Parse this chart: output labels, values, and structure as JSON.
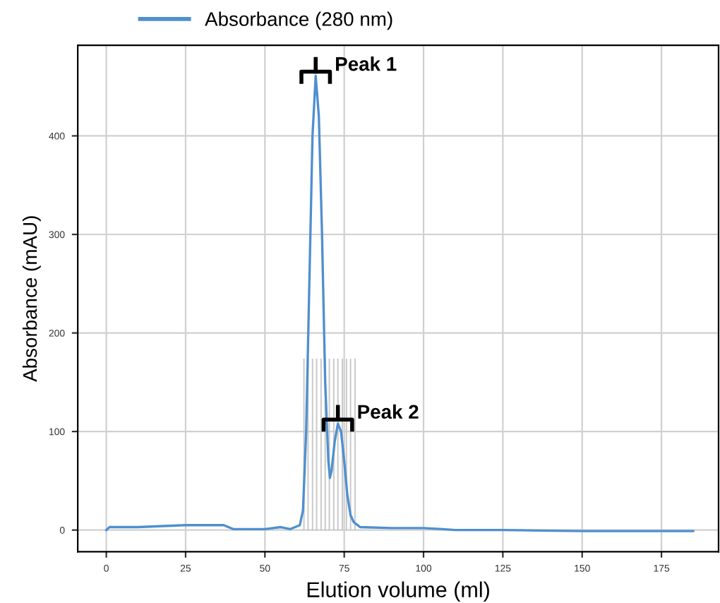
{
  "chart_data": {
    "type": "line",
    "xlabel": "Elution volume (ml)",
    "ylabel": "Absorbance (mAU)",
    "xlim": [
      -9,
      193
    ],
    "ylim": [
      -22,
      492
    ],
    "xticks": [
      0,
      25,
      50,
      75,
      100,
      125,
      150,
      175
    ],
    "yticks": [
      0,
      100,
      200,
      300,
      400
    ],
    "grid": true,
    "legend": "top",
    "line_style": "solid",
    "series": [
      {
        "name": "Absorbance (280 nm)",
        "color": "#4f8fcf",
        "x": [
          0,
          1,
          10,
          25,
          37,
          40,
          50,
          55,
          58,
          61,
          62,
          63,
          64,
          65,
          66,
          67,
          68,
          69,
          70,
          70.5,
          71,
          72,
          73,
          74,
          75,
          76,
          77,
          78,
          80,
          90,
          100,
          106,
          110,
          125,
          150,
          185
        ],
        "values": [
          0,
          3,
          3,
          5,
          5,
          1,
          1,
          3,
          1,
          5,
          20,
          100,
          250,
          400,
          461,
          420,
          300,
          150,
          70,
          53,
          60,
          90,
          108,
          100,
          70,
          35,
          15,
          8,
          3,
          2,
          2,
          1,
          0,
          0,
          -1,
          -1
        ]
      }
    ],
    "ref_lines": [
      {
        "axis": "x",
        "value": 62.3,
        "color": "#c8c8c8"
      },
      {
        "axis": "x",
        "value": 63.6,
        "color": "#c8c8c8"
      },
      {
        "axis": "x",
        "value": 65.0,
        "color": "#c8c8c8"
      },
      {
        "axis": "x",
        "value": 66.3,
        "color": "#c8c8c8"
      },
      {
        "axis": "x",
        "value": 67.7,
        "color": "#c8c8c8"
      },
      {
        "axis": "x",
        "value": 69.0,
        "color": "#c8c8c8"
      },
      {
        "axis": "x",
        "value": 70.3,
        "color": "#c8c8c8"
      },
      {
        "axis": "x",
        "value": 71.7,
        "color": "#c8c8c8"
      },
      {
        "axis": "x",
        "value": 73.0,
        "color": "#c8c8c8"
      },
      {
        "axis": "x",
        "value": 74.4,
        "color": "#c8c8c8"
      },
      {
        "axis": "x",
        "value": 75.7,
        "color": "#c8c8c8"
      },
      {
        "axis": "x",
        "value": 77.0,
        "color": "#c8c8c8"
      },
      {
        "axis": "x",
        "value": 78.4,
        "color": "#c8c8c8"
      }
    ],
    "annotations": [
      {
        "text": "Peak 1",
        "x": 66,
        "y": 461
      },
      {
        "text": "Peak 2",
        "x": 73,
        "y": 108
      }
    ]
  }
}
